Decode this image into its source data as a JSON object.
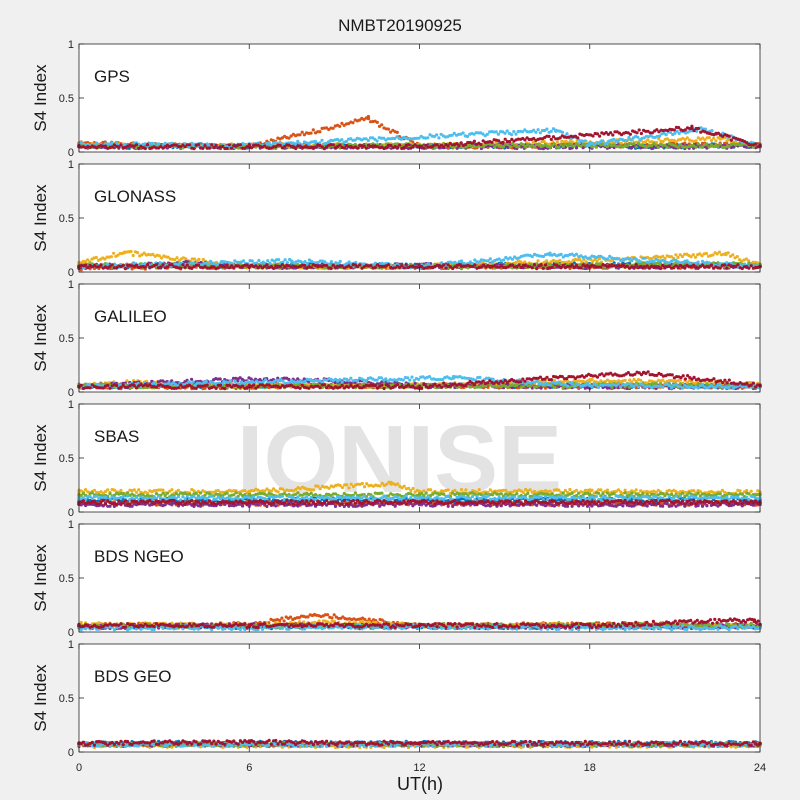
{
  "title": "NMBT20190925",
  "xlabel": "UT(h)",
  "ylabel": "S4 Index",
  "watermark": "IONISE",
  "xticks": [
    "0",
    "6",
    "12",
    "18",
    "24"
  ],
  "yticks": [
    "0",
    "0.5",
    "1"
  ],
  "series_colors": [
    "#0072BD",
    "#D95319",
    "#EDB120",
    "#7E2F8E",
    "#77AC30",
    "#4DBEEE",
    "#A2142F"
  ],
  "chart_data": [
    {
      "type": "scatter",
      "title": "GPS",
      "xlabel": "UT(h)",
      "ylabel": "S4 Index",
      "xlim": [
        0,
        24
      ],
      "ylim": [
        0,
        1
      ],
      "grid": false,
      "series": [
        {
          "values": [
            [
              0.0,
              0.06
            ],
            [
              2.0,
              0.05
            ],
            [
              4.0,
              0.06
            ],
            [
              6.0,
              0.05
            ],
            [
              8.0,
              0.06
            ],
            [
              10.0,
              0.05
            ],
            [
              12.0,
              0.05
            ],
            [
              14.0,
              0.06
            ],
            [
              16.0,
              0.05
            ],
            [
              18.0,
              0.06
            ],
            [
              20.0,
              0.05
            ],
            [
              22.0,
              0.06
            ],
            [
              24.0,
              0.06
            ]
          ]
        },
        {
          "values": [
            [
              0.0,
              0.08
            ],
            [
              3.0,
              0.06
            ],
            [
              6.0,
              0.05
            ],
            [
              10.2,
              0.31
            ],
            [
              12.0,
              0.05
            ],
            [
              18.0,
              0.06
            ],
            [
              24.0,
              0.07
            ]
          ]
        },
        {
          "values": [
            [
              0.0,
              0.06
            ],
            [
              6.0,
              0.06
            ],
            [
              12.0,
              0.06
            ],
            [
              15.0,
              0.07
            ],
            [
              22.6,
              0.12
            ],
            [
              24.0,
              0.06
            ]
          ]
        },
        {
          "values": [
            [
              0.0,
              0.05
            ],
            [
              6.0,
              0.05
            ],
            [
              12.0,
              0.05
            ],
            [
              18.0,
              0.05
            ],
            [
              24.0,
              0.05
            ]
          ]
        },
        {
          "values": [
            [
              0.0,
              0.06
            ],
            [
              6.0,
              0.05
            ],
            [
              12.0,
              0.06
            ],
            [
              18.0,
              0.06
            ],
            [
              24.0,
              0.06
            ]
          ]
        },
        {
          "values": [
            [
              0.0,
              0.07
            ],
            [
              6.0,
              0.06
            ],
            [
              16.8,
              0.2
            ],
            [
              18.0,
              0.07
            ],
            [
              22.0,
              0.21
            ],
            [
              24.0,
              0.06
            ]
          ]
        },
        {
          "values": [
            [
              0.0,
              0.05
            ],
            [
              6.0,
              0.05
            ],
            [
              12.0,
              0.05
            ],
            [
              21.6,
              0.22
            ],
            [
              24.0,
              0.06
            ]
          ]
        }
      ]
    },
    {
      "type": "scatter",
      "title": "GLONASS",
      "xlabel": "UT(h)",
      "ylabel": "S4 Index",
      "xlim": [
        0,
        24
      ],
      "ylim": [
        0,
        1
      ],
      "grid": false,
      "series": [
        {
          "values": [
            [
              0.0,
              0.05
            ],
            [
              6.0,
              0.06
            ],
            [
              12.0,
              0.06
            ],
            [
              18.0,
              0.07
            ],
            [
              24.0,
              0.06
            ]
          ]
        },
        {
          "values": [
            [
              0.0,
              0.04
            ],
            [
              6.0,
              0.05
            ],
            [
              12.0,
              0.05
            ],
            [
              18.0,
              0.05
            ],
            [
              24.0,
              0.05
            ]
          ]
        },
        {
          "values": [
            [
              0.0,
              0.08
            ],
            [
              1.6,
              0.18
            ],
            [
              6.0,
              0.05
            ],
            [
              12.0,
              0.05
            ],
            [
              19.5,
              0.12
            ],
            [
              22.8,
              0.17
            ],
            [
              24.0,
              0.06
            ]
          ]
        },
        {
          "values": [
            [
              0.0,
              0.05
            ],
            [
              4.0,
              0.08
            ],
            [
              6.0,
              0.05
            ],
            [
              12.0,
              0.06
            ],
            [
              18.0,
              0.05
            ],
            [
              24.0,
              0.06
            ]
          ]
        },
        {
          "values": [
            [
              0.0,
              0.06
            ],
            [
              6.0,
              0.06
            ],
            [
              12.0,
              0.05
            ],
            [
              18.0,
              0.06
            ],
            [
              24.0,
              0.07
            ]
          ]
        },
        {
          "values": [
            [
              0.0,
              0.05
            ],
            [
              7.5,
              0.1
            ],
            [
              12.0,
              0.05
            ],
            [
              16.6,
              0.16
            ],
            [
              24.0,
              0.05
            ]
          ]
        },
        {
          "values": [
            [
              0.0,
              0.05
            ],
            [
              6.0,
              0.05
            ],
            [
              12.0,
              0.05
            ],
            [
              18.0,
              0.05
            ],
            [
              24.0,
              0.05
            ]
          ]
        }
      ]
    },
    {
      "type": "scatter",
      "title": "GALILEO",
      "xlabel": "UT(h)",
      "ylabel": "S4 Index",
      "xlim": [
        0,
        24
      ],
      "ylim": [
        0,
        1
      ],
      "grid": false,
      "series": [
        {
          "values": [
            [
              0.0,
              0.05
            ],
            [
              6.0,
              0.06
            ],
            [
              12.0,
              0.06
            ],
            [
              18.0,
              0.06
            ],
            [
              24.0,
              0.06
            ]
          ]
        },
        {
          "values": [
            [
              0.0,
              0.05
            ],
            [
              6.0,
              0.05
            ],
            [
              12.0,
              0.06
            ],
            [
              18.0,
              0.05
            ],
            [
              24.0,
              0.05
            ]
          ]
        },
        {
          "values": [
            [
              0.0,
              0.06
            ],
            [
              2.0,
              0.09
            ],
            [
              6.0,
              0.06
            ],
            [
              12.0,
              0.06
            ],
            [
              18.0,
              0.1
            ],
            [
              20.5,
              0.1
            ],
            [
              24.0,
              0.07
            ]
          ]
        },
        {
          "values": [
            [
              0.0,
              0.05
            ],
            [
              5.6,
              0.12
            ],
            [
              9.5,
              0.1
            ],
            [
              12.0,
              0.06
            ],
            [
              18.0,
              0.05
            ],
            [
              24.0,
              0.05
            ]
          ]
        },
        {
          "values": [
            [
              0.0,
              0.06
            ],
            [
              6.0,
              0.05
            ],
            [
              12.0,
              0.06
            ],
            [
              18.0,
              0.06
            ],
            [
              24.0,
              0.06
            ]
          ]
        },
        {
          "values": [
            [
              0.0,
              0.05
            ],
            [
              7.5,
              0.1
            ],
            [
              13.2,
              0.13
            ],
            [
              18.0,
              0.06
            ],
            [
              24.0,
              0.05
            ]
          ]
        },
        {
          "values": [
            [
              0.0,
              0.05
            ],
            [
              6.0,
              0.05
            ],
            [
              12.0,
              0.05
            ],
            [
              19.9,
              0.18
            ],
            [
              24.0,
              0.06
            ]
          ]
        }
      ]
    },
    {
      "type": "scatter",
      "title": "SBAS",
      "xlabel": "UT(h)",
      "ylabel": "S4 Index",
      "xlim": [
        0,
        24
      ],
      "ylim": [
        0,
        1
      ],
      "grid": false,
      "series": [
        {
          "values": [
            [
              0.0,
              0.11
            ],
            [
              6.0,
              0.11
            ],
            [
              12.0,
              0.11
            ],
            [
              18.0,
              0.11
            ],
            [
              24.0,
              0.11
            ]
          ]
        },
        {
          "values": [
            [
              0.0,
              0.08
            ],
            [
              6.0,
              0.08
            ],
            [
              12.0,
              0.08
            ],
            [
              18.0,
              0.08
            ],
            [
              24.0,
              0.08
            ]
          ]
        },
        {
          "values": [
            [
              0.0,
              0.19
            ],
            [
              6.0,
              0.19
            ],
            [
              11.0,
              0.26
            ],
            [
              12.0,
              0.19
            ],
            [
              18.0,
              0.19
            ],
            [
              24.0,
              0.18
            ]
          ]
        },
        {
          "values": [
            [
              0.0,
              0.07
            ],
            [
              6.0,
              0.07
            ],
            [
              12.0,
              0.07
            ],
            [
              18.0,
              0.07
            ],
            [
              24.0,
              0.07
            ]
          ]
        },
        {
          "values": [
            [
              0.0,
              0.16
            ],
            [
              6.0,
              0.16
            ],
            [
              12.0,
              0.16
            ],
            [
              18.0,
              0.16
            ],
            [
              24.0,
              0.16
            ]
          ]
        },
        {
          "values": [
            [
              0.0,
              0.13
            ],
            [
              6.0,
              0.13
            ],
            [
              12.0,
              0.13
            ],
            [
              18.0,
              0.13
            ],
            [
              24.0,
              0.13
            ]
          ]
        },
        {
          "values": [
            [
              0.0,
              0.09
            ],
            [
              6.0,
              0.09
            ],
            [
              12.0,
              0.09
            ],
            [
              18.0,
              0.09
            ],
            [
              24.0,
              0.09
            ]
          ]
        }
      ]
    },
    {
      "type": "scatter",
      "title": "BDS NGEO",
      "xlabel": "UT(h)",
      "ylabel": "S4 Index",
      "xlim": [
        0,
        24
      ],
      "ylim": [
        0,
        1
      ],
      "grid": false,
      "series": [
        {
          "values": [
            [
              0.0,
              0.05
            ],
            [
              6.0,
              0.05
            ],
            [
              12.0,
              0.05
            ],
            [
              18.0,
              0.05
            ],
            [
              24.0,
              0.05
            ]
          ]
        },
        {
          "values": [
            [
              0.0,
              0.06
            ],
            [
              6.0,
              0.07
            ],
            [
              8.3,
              0.16
            ],
            [
              12.0,
              0.06
            ],
            [
              18.0,
              0.07
            ],
            [
              24.0,
              0.06
            ]
          ]
        },
        {
          "values": [
            [
              0.0,
              0.07
            ],
            [
              6.0,
              0.06
            ],
            [
              9.0,
              0.09
            ],
            [
              12.0,
              0.06
            ],
            [
              18.0,
              0.06
            ],
            [
              24.0,
              0.05
            ]
          ]
        },
        {
          "values": [
            [
              0.0,
              0.05
            ],
            [
              6.0,
              0.06
            ],
            [
              12.0,
              0.05
            ],
            [
              18.0,
              0.05
            ],
            [
              24.0,
              0.05
            ]
          ]
        },
        {
          "values": [
            [
              0.0,
              0.06
            ],
            [
              6.0,
              0.05
            ],
            [
              12.0,
              0.06
            ],
            [
              18.0,
              0.06
            ],
            [
              24.0,
              0.06
            ]
          ]
        },
        {
          "values": [
            [
              0.0,
              0.04
            ],
            [
              6.0,
              0.04
            ],
            [
              12.0,
              0.05
            ],
            [
              18.0,
              0.04
            ],
            [
              24.0,
              0.04
            ]
          ]
        },
        {
          "values": [
            [
              0.0,
              0.06
            ],
            [
              6.0,
              0.06
            ],
            [
              12.0,
              0.06
            ],
            [
              18.0,
              0.06
            ],
            [
              23.8,
              0.11
            ],
            [
              24.0,
              0.07
            ]
          ]
        }
      ]
    },
    {
      "type": "scatter",
      "title": "BDS GEO",
      "xlabel": "UT(h)",
      "ylabel": "S4 Index",
      "xlim": [
        0,
        24
      ],
      "ylim": [
        0,
        1
      ],
      "grid": false,
      "series": [
        {
          "values": [
            [
              0.0,
              0.08
            ],
            [
              6.0,
              0.08
            ],
            [
              12.0,
              0.08
            ],
            [
              18.0,
              0.08
            ],
            [
              24.0,
              0.08
            ]
          ]
        },
        {
          "values": [
            [
              0.0,
              0.07
            ],
            [
              6.0,
              0.07
            ],
            [
              12.0,
              0.07
            ],
            [
              18.0,
              0.07
            ],
            [
              24.0,
              0.07
            ]
          ]
        },
        {
          "values": [
            [
              0.0,
              0.06
            ],
            [
              6.0,
              0.06
            ],
            [
              12.0,
              0.06
            ],
            [
              18.0,
              0.06
            ],
            [
              24.0,
              0.06
            ]
          ]
        },
        {
          "values": [
            [
              0.0,
              0.07
            ],
            [
              6.0,
              0.07
            ],
            [
              12.0,
              0.07
            ],
            [
              18.0,
              0.07
            ],
            [
              24.0,
              0.07
            ]
          ]
        },
        {
          "values": [
            [
              0.0,
              0.07
            ],
            [
              6.0,
              0.07
            ],
            [
              12.0,
              0.07
            ],
            [
              18.0,
              0.07
            ],
            [
              24.0,
              0.07
            ]
          ]
        },
        {
          "values": [
            [
              0.0,
              0.07
            ],
            [
              6.0,
              0.07
            ],
            [
              12.0,
              0.07
            ],
            [
              18.0,
              0.07
            ],
            [
              24.0,
              0.07
            ]
          ]
        },
        {
          "values": [
            [
              0.0,
              0.08
            ],
            [
              6.0,
              0.09
            ],
            [
              12.0,
              0.08
            ],
            [
              18.0,
              0.08
            ],
            [
              24.0,
              0.08
            ]
          ]
        }
      ]
    }
  ]
}
